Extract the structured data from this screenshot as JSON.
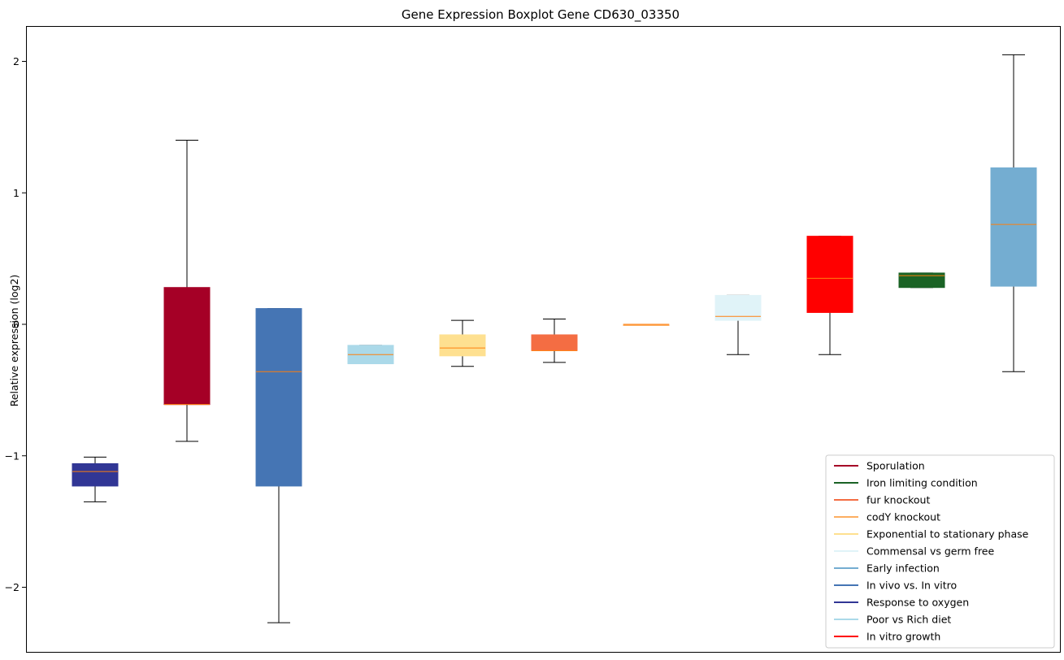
{
  "chart_data": {
    "type": "box",
    "title": "Gene Expression Boxplot Gene CD630_03350",
    "xlabel": "",
    "ylabel": "Relative expression (log2)",
    "ylim": [
      -2.5,
      2.25
    ],
    "yticks": [
      -2,
      -1,
      0,
      1,
      2
    ],
    "ytick_labels": [
      "−2",
      "−1",
      "0",
      "1",
      "2"
    ],
    "grid": false,
    "legend_position": "lower-right",
    "median_color": "#ff7f0e",
    "boxes": [
      {
        "color": "#313695",
        "whislo": -1.35,
        "q1": -1.23,
        "med": -1.12,
        "q3": -1.06,
        "whishi": -1.01
      },
      {
        "color": "#a50026",
        "whislo": -0.89,
        "q1": -0.61,
        "med": -0.61,
        "q3": 0.28,
        "whishi": 1.4
      },
      {
        "color": "#4575b4",
        "whislo": -2.27,
        "q1": -1.23,
        "med": -0.36,
        "q3": 0.12,
        "whishi": 0.12
      },
      {
        "color": "#abd9e9",
        "whislo": -0.3,
        "q1": -0.3,
        "med": -0.23,
        "q3": -0.16,
        "whishi": -0.16
      },
      {
        "color": "#fee090",
        "whislo": -0.32,
        "q1": -0.24,
        "med": -0.18,
        "q3": -0.08,
        "whishi": 0.03
      },
      {
        "color": "#f46d43",
        "whislo": -0.29,
        "q1": -0.2,
        "med": -0.2,
        "q3": -0.08,
        "whishi": 0.04
      },
      {
        "color": "#fdae61",
        "whislo": 0.0,
        "q1": 0.0,
        "med": 0.0,
        "q3": 0.0,
        "whishi": 0.0
      },
      {
        "color": "#e0f3f8",
        "whislo": -0.23,
        "q1": 0.03,
        "med": 0.06,
        "q3": 0.22,
        "whishi": 0.22
      },
      {
        "color": "#ff0000",
        "whislo": -0.23,
        "q1": 0.09,
        "med": 0.35,
        "q3": 0.67,
        "whishi": 0.67
      },
      {
        "color": "#1a6325",
        "whislo": 0.28,
        "q1": 0.28,
        "med": 0.37,
        "q3": 0.39,
        "whishi": 0.39
      },
      {
        "color": "#74add1",
        "whislo": -0.36,
        "q1": 0.29,
        "med": 0.76,
        "q3": 1.19,
        "whishi": 2.05
      }
    ],
    "legend": [
      {
        "label": "Sporulation",
        "color": "#a50026"
      },
      {
        "label": "Iron limiting condition",
        "color": "#1a6325"
      },
      {
        "label": "fur knockout",
        "color": "#f46d43"
      },
      {
        "label": "codY knockout",
        "color": "#fdae61"
      },
      {
        "label": "Exponential to stationary phase",
        "color": "#fee090"
      },
      {
        "label": "Commensal vs germ free",
        "color": "#e0f3f8"
      },
      {
        "label": "Early infection",
        "color": "#74add1"
      },
      {
        "label": "In vivo vs. In vitro",
        "color": "#4575b4"
      },
      {
        "label": "Response to oxygen",
        "color": "#313695"
      },
      {
        "label": "Poor vs Rich diet",
        "color": "#abd9e9"
      },
      {
        "label": "In vitro growth",
        "color": "#ff0000"
      }
    ]
  }
}
